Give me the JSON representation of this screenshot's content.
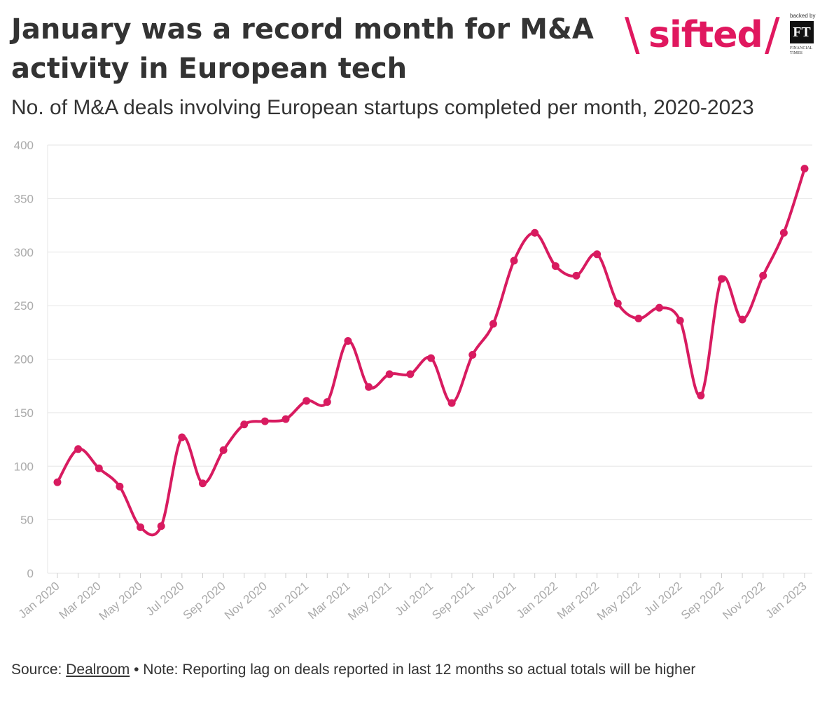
{
  "title": "January was a record month for M&A activity in European tech",
  "subtitle": "No. of M&A deals involving European startups completed per month, 2020-2023",
  "logo": {
    "text": "sifted",
    "backed_by": "backed by",
    "ft": "FT",
    "ft_caption": "FINANCIAL TIMES",
    "color": "#e0185f"
  },
  "footer": {
    "source_label": "Source: ",
    "source_link": "Dealroom",
    "note": " • Note: Reporting lag on deals reported in last 12 months so actual totals will be higher"
  },
  "chart_data": {
    "type": "line",
    "title": "January was a record month for M&A activity in European tech",
    "subtitle": "No. of M&A deals involving European startups completed per month, 2020-2023",
    "xlabel": "",
    "ylabel": "",
    "ylim": [
      0,
      400
    ],
    "yticks": [
      0,
      50,
      100,
      150,
      200,
      250,
      300,
      350,
      400
    ],
    "grid": "horizontal",
    "line_color": "#d81b60",
    "x": [
      "Jan 2020",
      "Feb 2020",
      "Mar 2020",
      "Apr 2020",
      "May 2020",
      "Jun 2020",
      "Jul 2020",
      "Aug 2020",
      "Sep 2020",
      "Oct 2020",
      "Nov 2020",
      "Dec 2020",
      "Jan 2021",
      "Feb 2021",
      "Mar 2021",
      "Apr 2021",
      "May 2021",
      "Jun 2021",
      "Jul 2021",
      "Aug 2021",
      "Sep 2021",
      "Oct 2021",
      "Nov 2021",
      "Dec 2021",
      "Jan 2022",
      "Feb 2022",
      "Mar 2022",
      "Apr 2022",
      "May 2022",
      "Jun 2022",
      "Jul 2022",
      "Aug 2022",
      "Sep 2022",
      "Oct 2022",
      "Nov 2022",
      "Dec 2022",
      "Jan 2023"
    ],
    "x_tick_labels": [
      "Jan 2020",
      "",
      "Mar 2020",
      "",
      "May 2020",
      "",
      "Jul 2020",
      "",
      "Sep 2020",
      "",
      "Nov 2020",
      "",
      "Jan 2021",
      "",
      "Mar 2021",
      "",
      "May 2021",
      "",
      "Jul 2021",
      "",
      "Sep 2021",
      "",
      "Nov 2021",
      "",
      "Jan 2022",
      "",
      "Mar 2022",
      "",
      "May 2022",
      "",
      "Jul 2022",
      "",
      "Sep 2022",
      "",
      "Nov 2022",
      "",
      "Jan 2023"
    ],
    "series": [
      {
        "values": [
          85,
          116,
          98,
          81,
          43,
          44,
          127,
          84,
          115,
          139,
          142,
          144,
          161,
          160,
          217,
          174,
          186,
          186,
          201,
          159,
          204,
          233,
          292,
          318,
          287,
          278,
          298,
          252,
          238,
          248,
          236,
          166,
          275,
          237,
          278,
          318,
          378
        ]
      }
    ]
  }
}
